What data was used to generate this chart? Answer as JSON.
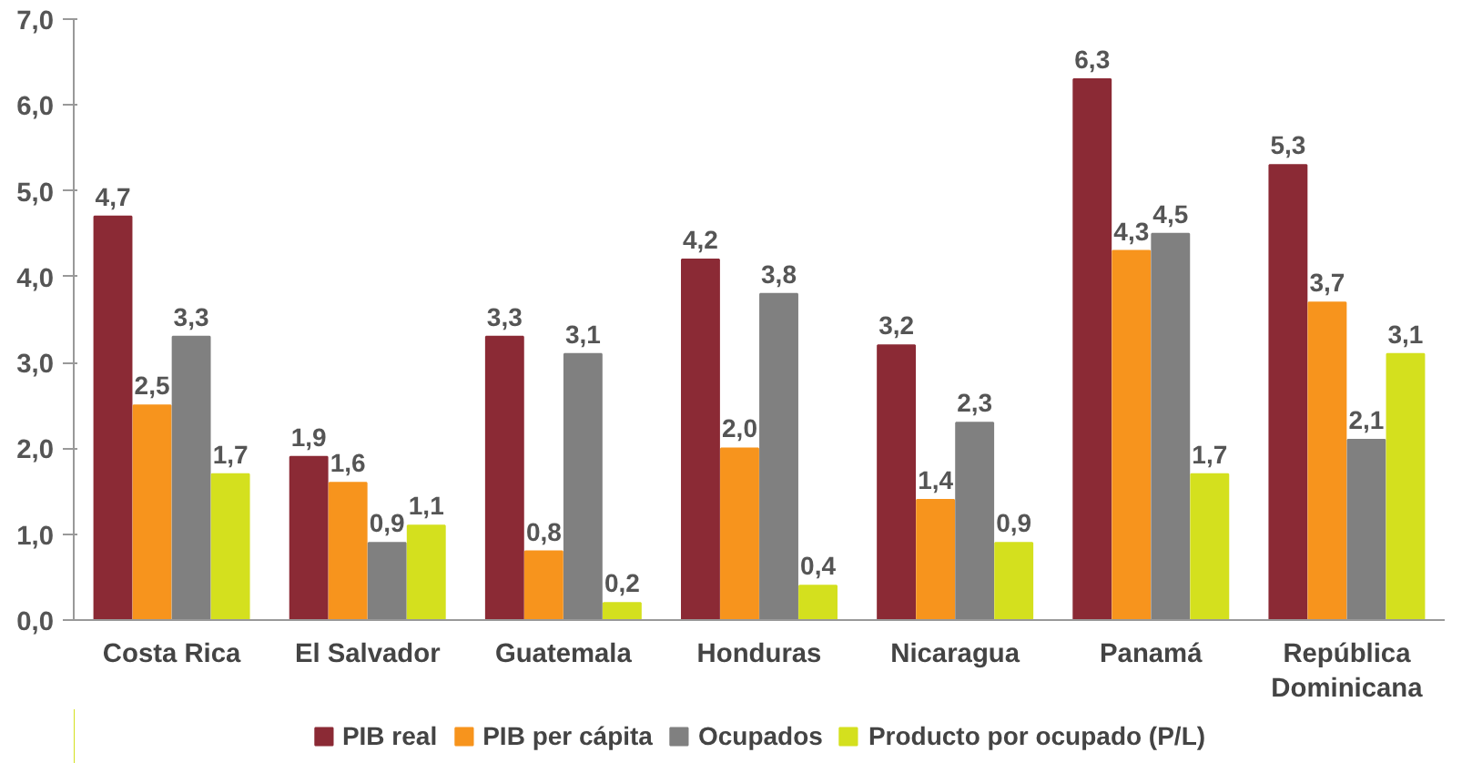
{
  "chart_data": {
    "type": "bar",
    "categories": [
      "Costa Rica",
      "El Salvador",
      "Guatemala",
      "Honduras",
      "Nicaragua",
      "Panamá",
      "República Dominicana"
    ],
    "series": [
      {
        "name": "PIB real",
        "color": "#8b2a35",
        "values": [
          4.7,
          1.9,
          3.3,
          4.2,
          3.2,
          6.3,
          5.3
        ],
        "value_labels": [
          "4,7",
          "1,9",
          "3,3",
          "4,2",
          "3,2",
          "6,3",
          "5,3"
        ]
      },
      {
        "name": "PIB per cápita",
        "color": "#f7941d",
        "values": [
          2.5,
          1.6,
          0.8,
          2.0,
          1.4,
          4.3,
          3.7
        ],
        "value_labels": [
          "2,5",
          "1,6",
          "0,8",
          "2,0",
          "1,4",
          "4,3",
          "3,7"
        ]
      },
      {
        "name": "Ocupados",
        "color": "#808080",
        "values": [
          3.3,
          0.9,
          3.1,
          3.8,
          2.3,
          4.5,
          2.1
        ],
        "value_labels": [
          "3,3",
          "0,9",
          "3,1",
          "3,8",
          "2,3",
          "4,5",
          "2,1"
        ]
      },
      {
        "name": "Producto por ocupado (P/L)",
        "color": "#d4e01e",
        "values": [
          1.7,
          1.1,
          0.2,
          0.4,
          0.9,
          1.7,
          3.1
        ],
        "value_labels": [
          "1,7",
          "1,1",
          "0,2",
          "0,4",
          "0,9",
          "1,7",
          "3,1"
        ]
      }
    ],
    "ylim": [
      0,
      7
    ],
    "yticks": [
      {
        "value": 0,
        "label": "0,0"
      },
      {
        "value": 1,
        "label": "1,0"
      },
      {
        "value": 2,
        "label": "2,0"
      },
      {
        "value": 3,
        "label": "3,0"
      },
      {
        "value": 4,
        "label": "4,0"
      },
      {
        "value": 5,
        "label": "5,0"
      },
      {
        "value": 6,
        "label": "6,0"
      },
      {
        "value": 7,
        "label": "7,0"
      }
    ],
    "grid": false,
    "legend": "bottom"
  }
}
